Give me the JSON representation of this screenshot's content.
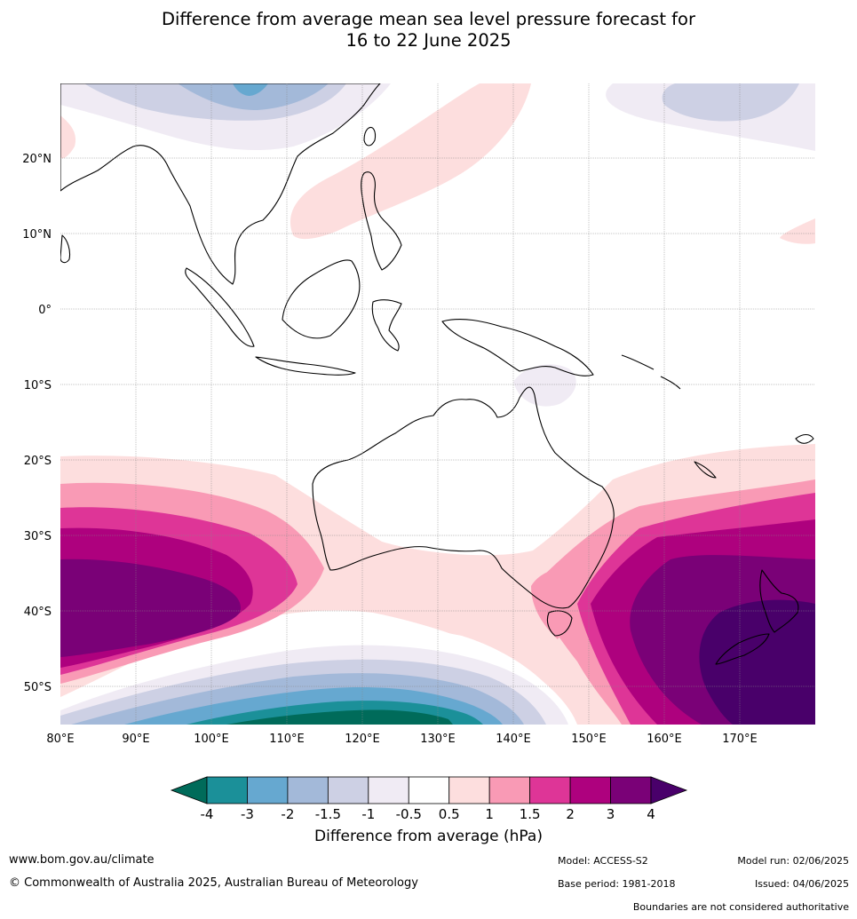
{
  "title": {
    "line1": "Difference from average mean sea level pressure forecast for",
    "line2": "16 to 22 June 2025"
  },
  "axes": {
    "lat_labels": [
      "20°N",
      "10°N",
      "0°",
      "10°S",
      "20°S",
      "30°S",
      "40°S",
      "50°S"
    ],
    "lon_labels": [
      "80°E",
      "90°E",
      "100°E",
      "110°E",
      "120°E",
      "130°E",
      "140°E",
      "150°E",
      "160°E",
      "170°E"
    ]
  },
  "colorbar": {
    "ticks": [
      "-4",
      "-3",
      "-2",
      "-1.5",
      "-1",
      "-0.5",
      "0.5",
      "1",
      "1.5",
      "2",
      "3",
      "4"
    ],
    "title": "Difference from average (hPa)",
    "colors": {
      "lt-4": "#006b5a",
      "-4_-3": "#1b9099",
      "-3_-2": "#66a8d0",
      "-2_-1.5": "#a3b9d9",
      "-1.5_-1": "#cdd0e4",
      "-1_-0.5": "#f0ebf4",
      "-0.5_0.5": "#ffffff",
      "0.5_1": "#fddede",
      "1_1.5": "#f99ab5",
      "1.5_2": "#de3597",
      "2_3": "#ae017e",
      "3_4": "#7a0177",
      "gt4": "#49006a"
    }
  },
  "footer": {
    "website": "www.bom.gov.au/climate",
    "copyright": "© Commonwealth of Australia 2025, Australian Bureau of Meteorology",
    "model": "Model: ACCESS-S2",
    "base_period": "Base period: 1981-2018",
    "model_run": "Model run: 02/06/2025",
    "issued": "Issued: 04/06/2025",
    "disclaimer": "Boundaries are not considered authoritative"
  }
}
